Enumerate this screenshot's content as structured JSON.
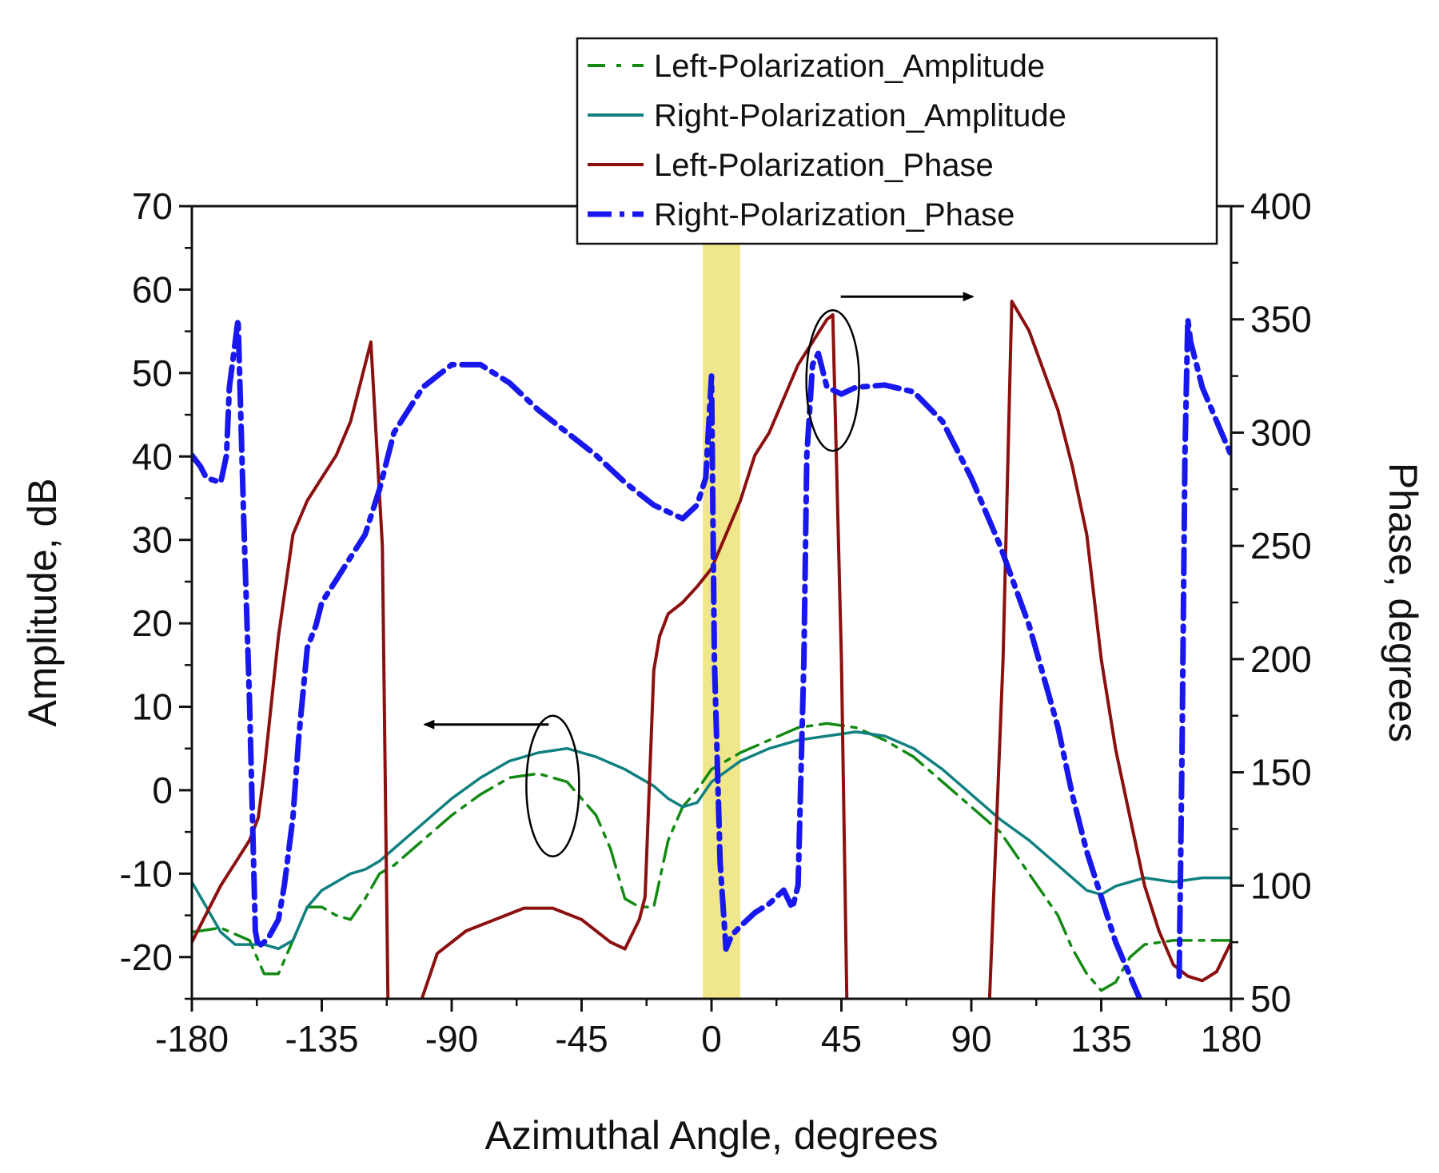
{
  "chart_data": {
    "type": "line",
    "xlabel": "Azimuthal Angle, degrees",
    "ylabel": "Amplitude, dB",
    "y2label": "Phase, degrees",
    "xlim": [
      -180,
      180
    ],
    "ylim": [
      -25,
      70
    ],
    "y2lim": [
      50,
      400
    ],
    "xticks": [
      -180,
      -135,
      -90,
      -45,
      0,
      45,
      90,
      135,
      180
    ],
    "yticks": [
      -20,
      -10,
      0,
      10,
      20,
      30,
      40,
      50,
      60,
      70
    ],
    "y2ticks": [
      50,
      100,
      150,
      200,
      250,
      300,
      350,
      400
    ],
    "highlight_band": {
      "x_from": -3,
      "x_to": 10,
      "color": "#f0e68c"
    },
    "annotations": [
      {
        "type": "ellipse-arrow",
        "x": -55,
        "y": 0.5,
        "points_to": "left-axis"
      },
      {
        "type": "ellipse-arrow",
        "x": 42,
        "y": 323,
        "points_to": "right-axis"
      }
    ],
    "series": [
      {
        "name": "Left-Polarization_Amplitude",
        "axis": "left",
        "color": "#138a13",
        "dash": "dashdot",
        "x": [
          -180,
          -170,
          -160,
          -155,
          -150,
          -145,
          -140,
          -135,
          -130,
          -125,
          -120,
          -115,
          -110,
          -100,
          -90,
          -80,
          -70,
          -60,
          -50,
          -40,
          -35,
          -30,
          -25,
          -20,
          -15,
          -10,
          -5,
          0,
          10,
          20,
          30,
          40,
          50,
          60,
          70,
          80,
          90,
          100,
          110,
          120,
          125,
          130,
          135,
          140,
          145,
          150,
          160,
          170,
          180
        ],
        "values": [
          -17,
          -16.5,
          -18,
          -22,
          -22,
          -18,
          -14,
          -14,
          -15,
          -15.5,
          -13,
          -10,
          -9,
          -6,
          -3,
          -0.5,
          1.5,
          2,
          1,
          -3,
          -7,
          -13,
          -14,
          -14,
          -6,
          -2,
          0,
          2.5,
          4.5,
          6,
          7.5,
          8,
          7.5,
          6,
          4,
          1,
          -2,
          -5,
          -10,
          -15,
          -19,
          -22,
          -24,
          -23,
          -20,
          -18.5,
          -18,
          -18,
          -18
        ]
      },
      {
        "name": "Right-Polarization_Amplitude",
        "axis": "left",
        "color": "#108080",
        "dash": "solid",
        "x": [
          -180,
          -175,
          -170,
          -165,
          -160,
          -155,
          -150,
          -145,
          -140,
          -135,
          -130,
          -125,
          -120,
          -115,
          -110,
          -100,
          -90,
          -80,
          -70,
          -60,
          -50,
          -40,
          -30,
          -20,
          -15,
          -10,
          -5,
          0,
          10,
          20,
          30,
          40,
          50,
          60,
          70,
          80,
          90,
          100,
          110,
          120,
          130,
          135,
          140,
          150,
          160,
          170,
          180
        ],
        "values": [
          -11,
          -14,
          -17,
          -18.5,
          -18.5,
          -18.5,
          -19,
          -18,
          -14,
          -12,
          -11,
          -10,
          -9.5,
          -8.5,
          -7,
          -4,
          -1,
          1.5,
          3.5,
          4.5,
          5,
          4,
          2.5,
          0.5,
          -1,
          -2,
          -1.5,
          1,
          3.5,
          5,
          6,
          6.5,
          7,
          6.5,
          5,
          2.5,
          -0.5,
          -3.5,
          -6,
          -9,
          -12,
          -12.5,
          -11.5,
          -10.5,
          -11,
          -10.5,
          -10.5
        ]
      },
      {
        "name": "Left-Polarization_Phase",
        "axis": "right",
        "color": "#8b1010",
        "dash": "solid",
        "segments": [
          {
            "x": [
              -180,
              -170,
              -165,
              -160,
              -157,
              -155,
              -150,
              -145,
              -140,
              -135,
              -130,
              -125,
              -120,
              -118,
              -114,
              -112
            ],
            "values": [
              75,
              100,
              110,
              120,
              130,
              150,
              210,
              255,
              270,
              280,
              290,
              305,
              330,
              340,
              250,
              40
            ]
          },
          {
            "x": [
              -103,
              -95,
              -85,
              -75,
              -65,
              -55,
              -45,
              -35,
              -30,
              -25,
              -23,
              -20,
              -18,
              -15,
              -10,
              -5,
              0,
              5,
              10,
              15,
              20,
              30,
              40,
              42,
              45,
              47
            ],
            "values": [
              40,
              70,
              80,
              85,
              90,
              90,
              85,
              75,
              72,
              85,
              95,
              195,
              210,
              220,
              225,
              232,
              240,
              255,
              270,
              290,
              300,
              330,
              350,
              352,
              200,
              40
            ]
          },
          {
            "x": [
              96,
              101,
              104,
              110,
              120,
              125,
              130,
              135,
              140,
              145,
              150,
              155,
              160,
              165,
              170,
              175,
              180
            ],
            "values": [
              40,
              200,
              358,
              345,
              310,
              285,
              255,
              200,
              160,
              130,
              100,
              80,
              65,
              60,
              58,
              62,
              75
            ]
          }
        ]
      },
      {
        "name": "Right-Polarization_Phase",
        "axis": "right",
        "color": "#1818ee",
        "dash": "dashdot",
        "segments": [
          {
            "x": [
              -180,
              -177,
              -175,
              -170,
              -168,
              -167,
              -165,
              -164,
              -162,
              -160,
              -158,
              -157,
              -155,
              -153,
              -150,
              -148,
              -145,
              -143,
              -140,
              -137,
              -135,
              -130,
              -125,
              -120,
              -115,
              -110,
              -100,
              -90,
              -80,
              -70,
              -60,
              -50,
              -40,
              -30,
              -20,
              -10,
              -5,
              -2,
              0,
              1,
              3,
              5,
              7,
              10,
              15,
              20,
              25,
              28,
              30,
              32,
              33,
              35,
              37,
              40,
              45,
              50,
              60,
              70,
              80,
              90,
              100,
              110,
              120,
              125,
              130,
              135,
              140,
              145,
              150,
              155,
              160
            ],
            "values": [
              290,
              285,
              280,
              278,
              290,
              320,
              340,
              350,
              260,
              180,
              80,
              73,
              75,
              78,
              85,
              100,
              130,
              165,
              205,
              215,
              225,
              235,
              245,
              255,
              275,
              300,
              320,
              330,
              330,
              322,
              310,
              300,
              290,
              278,
              268,
              262,
              268,
              280,
              325,
              200,
              110,
              72,
              78,
              82,
              88,
              92,
              98,
              90,
              100,
              200,
              290,
              330,
              335,
              320,
              317,
              320,
              321,
              318,
              305,
              280,
              250,
              215,
              170,
              140,
              115,
              95,
              75,
              60,
              45,
              30,
              20
            ]
          },
          {
            "x": [
              162,
              163,
              164,
              165,
              166,
              168,
              170,
              175,
              180
            ],
            "values": [
              60,
              160,
              290,
              350,
              340,
              330,
              320,
              305,
              290
            ]
          }
        ]
      }
    ]
  }
}
